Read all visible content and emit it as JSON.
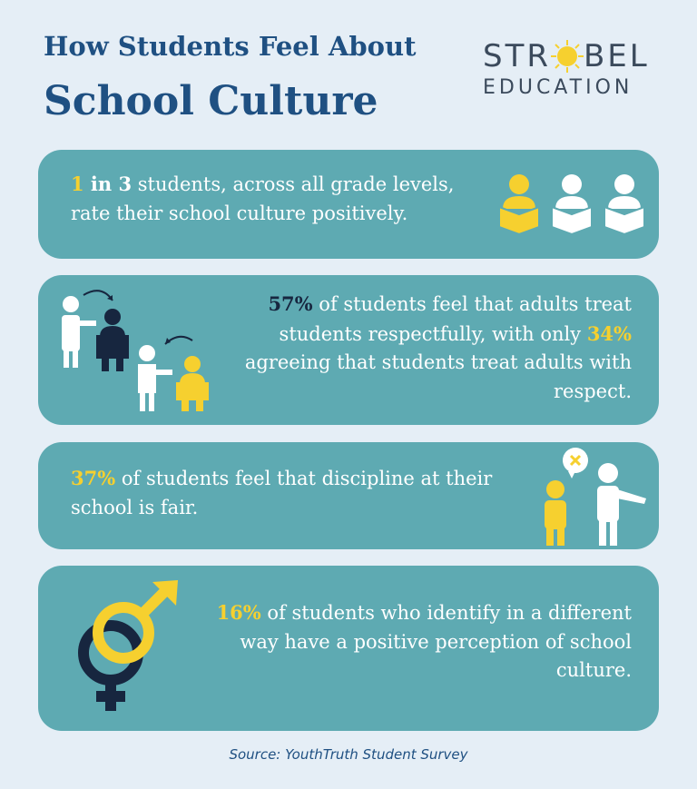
{
  "header": {
    "title_line1": "How Students Feel About",
    "title_line2": "School Culture"
  },
  "logo": {
    "name_start": "STR",
    "name_end": "BEL",
    "tagline": "EDUCATION"
  },
  "cards": [
    {
      "segments": [
        "1",
        " in 3",
        " students, across all grade levels, rate their school culture positively."
      ]
    },
    {
      "segments": [
        "57%",
        " of students feel that adults treat students respectfully, with only ",
        "34%",
        " agreeing that students treat adults with respect."
      ]
    },
    {
      "segments": [
        "37%",
        " of students feel that discipline at their school is fair."
      ]
    },
    {
      "segments": [
        "16%",
        " of students who identify in a different way have a positive perception of school culture."
      ]
    }
  ],
  "source": "Source: YouthTruth Student Survey"
}
